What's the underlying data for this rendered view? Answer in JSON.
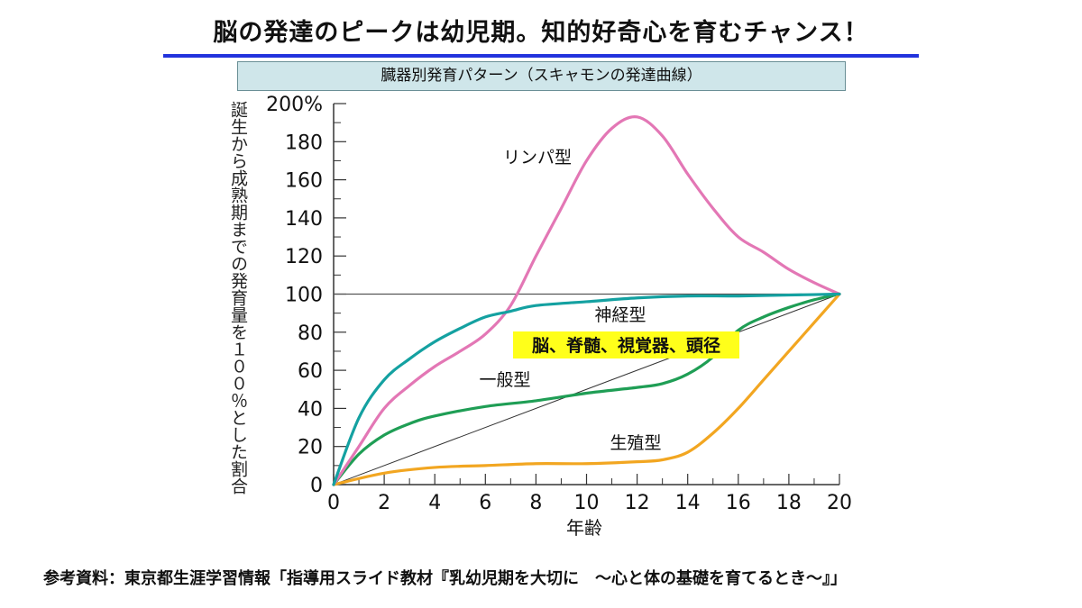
{
  "slide": {
    "title": "脳の発達のピークは幼児期。知的好奇心を育むチャンス！",
    "footer": "参考資料：東京都生涯学習情報「指導用スライド教材『乳幼児期を大切に　～心と体の基礎を育てるとき～』」"
  },
  "chart_data": {
    "type": "line",
    "title": "臓器別発育パターン（スキャモンの発達曲線）",
    "xlabel": "年齢",
    "ylabel": "誕生から成熟期までの発育量を１００％とした割合",
    "xlim": [
      0,
      20
    ],
    "ylim": [
      0,
      200
    ],
    "x_ticks": [
      "0",
      "2",
      "4",
      "6",
      "8",
      "10",
      "12",
      "14",
      "16",
      "18",
      "20"
    ],
    "y_ticks": [
      "0",
      "20",
      "40",
      "60",
      "80",
      "100",
      "120",
      "140",
      "160",
      "180",
      "200%"
    ],
    "reference_line_y": 100,
    "grid": false,
    "series": [
      {
        "name": "リンパ型",
        "color": "#e377b5",
        "points": [
          [
            0,
            0
          ],
          [
            1,
            20
          ],
          [
            2,
            40
          ],
          [
            3,
            52
          ],
          [
            4,
            62
          ],
          [
            5,
            70
          ],
          [
            6,
            79
          ],
          [
            7,
            94
          ],
          [
            8,
            120
          ],
          [
            9,
            145
          ],
          [
            10,
            170
          ],
          [
            11,
            187
          ],
          [
            12,
            193
          ],
          [
            13,
            183
          ],
          [
            14,
            163
          ],
          [
            15,
            145
          ],
          [
            16,
            130
          ],
          [
            17,
            122
          ],
          [
            18,
            113
          ],
          [
            19,
            106
          ],
          [
            20,
            100
          ]
        ]
      },
      {
        "name": "神経型",
        "note": "脳、脊髄、視覚器、頭径",
        "color": "#14a1a1",
        "points": [
          [
            0,
            0
          ],
          [
            1,
            35
          ],
          [
            2,
            55
          ],
          [
            3,
            66
          ],
          [
            4,
            75
          ],
          [
            5,
            82
          ],
          [
            6,
            88
          ],
          [
            7,
            91
          ],
          [
            8,
            94
          ],
          [
            10,
            96
          ],
          [
            12,
            98
          ],
          [
            14,
            99
          ],
          [
            16,
            99
          ],
          [
            18,
            99.5
          ],
          [
            20,
            100
          ]
        ]
      },
      {
        "name": "一般型",
        "color": "#1f9e55",
        "points": [
          [
            0,
            0
          ],
          [
            1,
            16
          ],
          [
            2,
            26
          ],
          [
            3,
            32
          ],
          [
            4,
            36
          ],
          [
            6,
            41
          ],
          [
            8,
            44
          ],
          [
            10,
            48
          ],
          [
            12,
            51
          ],
          [
            13,
            53
          ],
          [
            14,
            58
          ],
          [
            15,
            67
          ],
          [
            16,
            81
          ],
          [
            17,
            88
          ],
          [
            18,
            93
          ],
          [
            19,
            97
          ],
          [
            20,
            100
          ]
        ]
      },
      {
        "name": "生殖型",
        "color": "#f2a621",
        "points": [
          [
            0,
            0
          ],
          [
            2,
            6
          ],
          [
            4,
            9
          ],
          [
            6,
            10
          ],
          [
            8,
            11
          ],
          [
            10,
            11
          ],
          [
            12,
            12
          ],
          [
            13,
            13
          ],
          [
            14,
            17
          ],
          [
            15,
            27
          ],
          [
            16,
            40
          ],
          [
            17,
            55
          ],
          [
            18,
            70
          ],
          [
            19,
            85
          ],
          [
            20,
            100
          ]
        ]
      }
    ],
    "diagonal": [
      [
        0,
        0
      ],
      [
        20,
        100
      ]
    ]
  }
}
